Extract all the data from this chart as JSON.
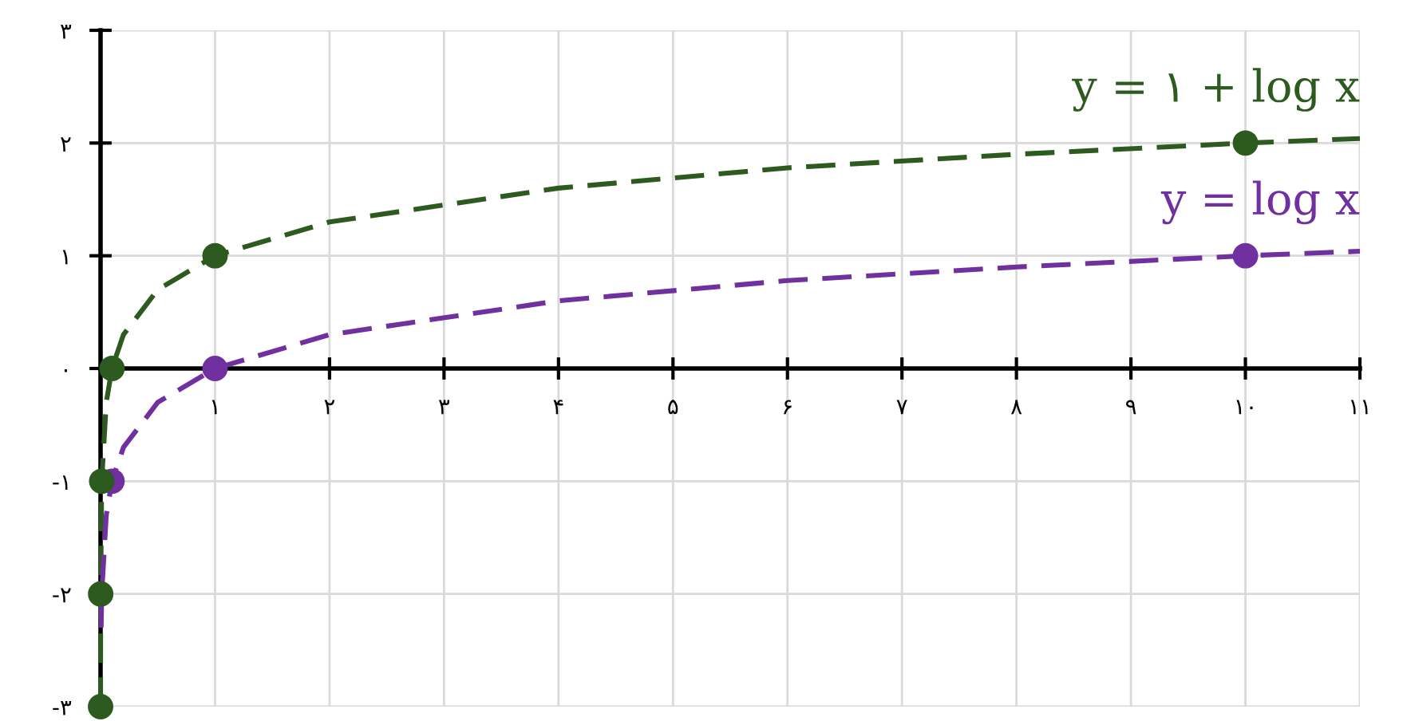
{
  "chart_data": {
    "type": "line",
    "xlim": [
      0,
      11
    ],
    "ylim": [
      -3,
      3
    ],
    "xticks": [
      {
        "value": 1,
        "label": "۱"
      },
      {
        "value": 2,
        "label": "۲"
      },
      {
        "value": 3,
        "label": "۳"
      },
      {
        "value": 4,
        "label": "۴"
      },
      {
        "value": 5,
        "label": "۵"
      },
      {
        "value": 6,
        "label": "۶"
      },
      {
        "value": 7,
        "label": "۷"
      },
      {
        "value": 8,
        "label": "۸"
      },
      {
        "value": 9,
        "label": "۹"
      },
      {
        "value": 10,
        "label": "۱۰"
      },
      {
        "value": 11,
        "label": "۱۱"
      }
    ],
    "yticks": [
      {
        "value": -3,
        "label": "-۳"
      },
      {
        "value": -2,
        "label": "-۲"
      },
      {
        "value": -1,
        "label": "-۱"
      },
      {
        "value": 0,
        "label": "۰"
      },
      {
        "value": 1,
        "label": "۱"
      },
      {
        "value": 2,
        "label": "۲"
      },
      {
        "value": 3,
        "label": "۳"
      }
    ],
    "grid": true,
    "legend": false,
    "series": [
      {
        "name": "y = ۱ + log x",
        "color": "#2d5a1e",
        "line_style": "dashed",
        "marker": "none",
        "x": [
          0.0001,
          0.001,
          0.01,
          0.05,
          0.1,
          0.2,
          0.5,
          1,
          2,
          4,
          6,
          8,
          10,
          11
        ],
        "values": [
          -3,
          -2,
          -1,
          -0.3,
          0,
          0.3,
          0.7,
          1,
          1.3,
          1.6,
          1.78,
          1.9,
          2,
          2.04
        ]
      },
      {
        "name": "y = log x",
        "color": "#7030a0",
        "line_style": "dashed",
        "marker": "none",
        "x": [
          0.005,
          0.01,
          0.05,
          0.1,
          0.2,
          0.5,
          1,
          2,
          4,
          6,
          8,
          10,
          11
        ],
        "values": [
          -2.3,
          -2,
          -1.3,
          -1,
          -0.7,
          -0.3,
          0,
          0.3,
          0.6,
          0.78,
          0.9,
          1,
          1.04
        ]
      },
      {
        "type": "scatter",
        "color": "#2d5a1e",
        "marker": "circle",
        "x": [
          0.0001,
          0.001,
          0.01,
          0.1,
          1,
          10
        ],
        "values": [
          -3,
          -2,
          -1,
          0,
          1,
          2
        ]
      },
      {
        "type": "scatter",
        "color": "#7030a0",
        "marker": "circle",
        "x": [
          0.1,
          1,
          10
        ],
        "values": [
          -1,
          0,
          1
        ]
      }
    ]
  }
}
